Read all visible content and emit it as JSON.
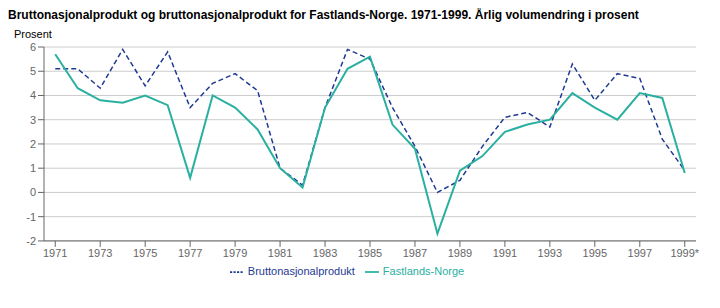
{
  "chart_data": {
    "type": "line",
    "title": "Bruttonasjonalprodukt og bruttonasjonalprodukt for Fastlands-Norge. 1971-1999. Årlig volumendring i prosent",
    "ylabel": "Prosent",
    "x": [
      1971,
      1972,
      1973,
      1974,
      1975,
      1976,
      1977,
      1978,
      1979,
      1980,
      1981,
      1982,
      1983,
      1984,
      1985,
      1986,
      1987,
      1988,
      1989,
      1990,
      1991,
      1992,
      1993,
      1994,
      1995,
      1996,
      1997,
      1998,
      1999
    ],
    "series": [
      {
        "name": "Bruttonasjonalprodukt",
        "color": "#1f3a93",
        "line_style": "dashed",
        "values": [
          5.1,
          5.1,
          4.3,
          5.9,
          4.4,
          5.8,
          3.5,
          4.5,
          4.9,
          4.2,
          1.0,
          0.3,
          3.5,
          5.9,
          5.5,
          3.5,
          1.9,
          0.0,
          0.5,
          1.9,
          3.1,
          3.3,
          2.7,
          5.3,
          3.8,
          4.9,
          4.7,
          2.2,
          0.9
        ]
      },
      {
        "name": "Fastlands-Norge",
        "color": "#2ab0a0",
        "line_style": "solid",
        "values": [
          5.7,
          4.3,
          3.8,
          3.7,
          4.0,
          3.6,
          0.6,
          4.0,
          3.5,
          2.6,
          1.0,
          0.2,
          3.5,
          5.1,
          5.6,
          2.8,
          1.8,
          -1.7,
          0.9,
          1.5,
          2.5,
          2.8,
          3.0,
          4.1,
          3.5,
          3.0,
          4.1,
          3.9,
          0.8
        ]
      }
    ],
    "xlim": [
      1970.5,
      1999.5
    ],
    "xticks": [
      1971,
      1973,
      1975,
      1977,
      1979,
      1981,
      1983,
      1985,
      1987,
      1989,
      1991,
      1993,
      1995,
      1997,
      {
        "value": 1999,
        "label": "1999*"
      }
    ],
    "ylim": [
      -2,
      6
    ],
    "yticks": [
      -2,
      -1,
      0,
      1,
      2,
      3,
      4,
      5,
      6
    ],
    "grid": true,
    "legend": "bottom"
  }
}
